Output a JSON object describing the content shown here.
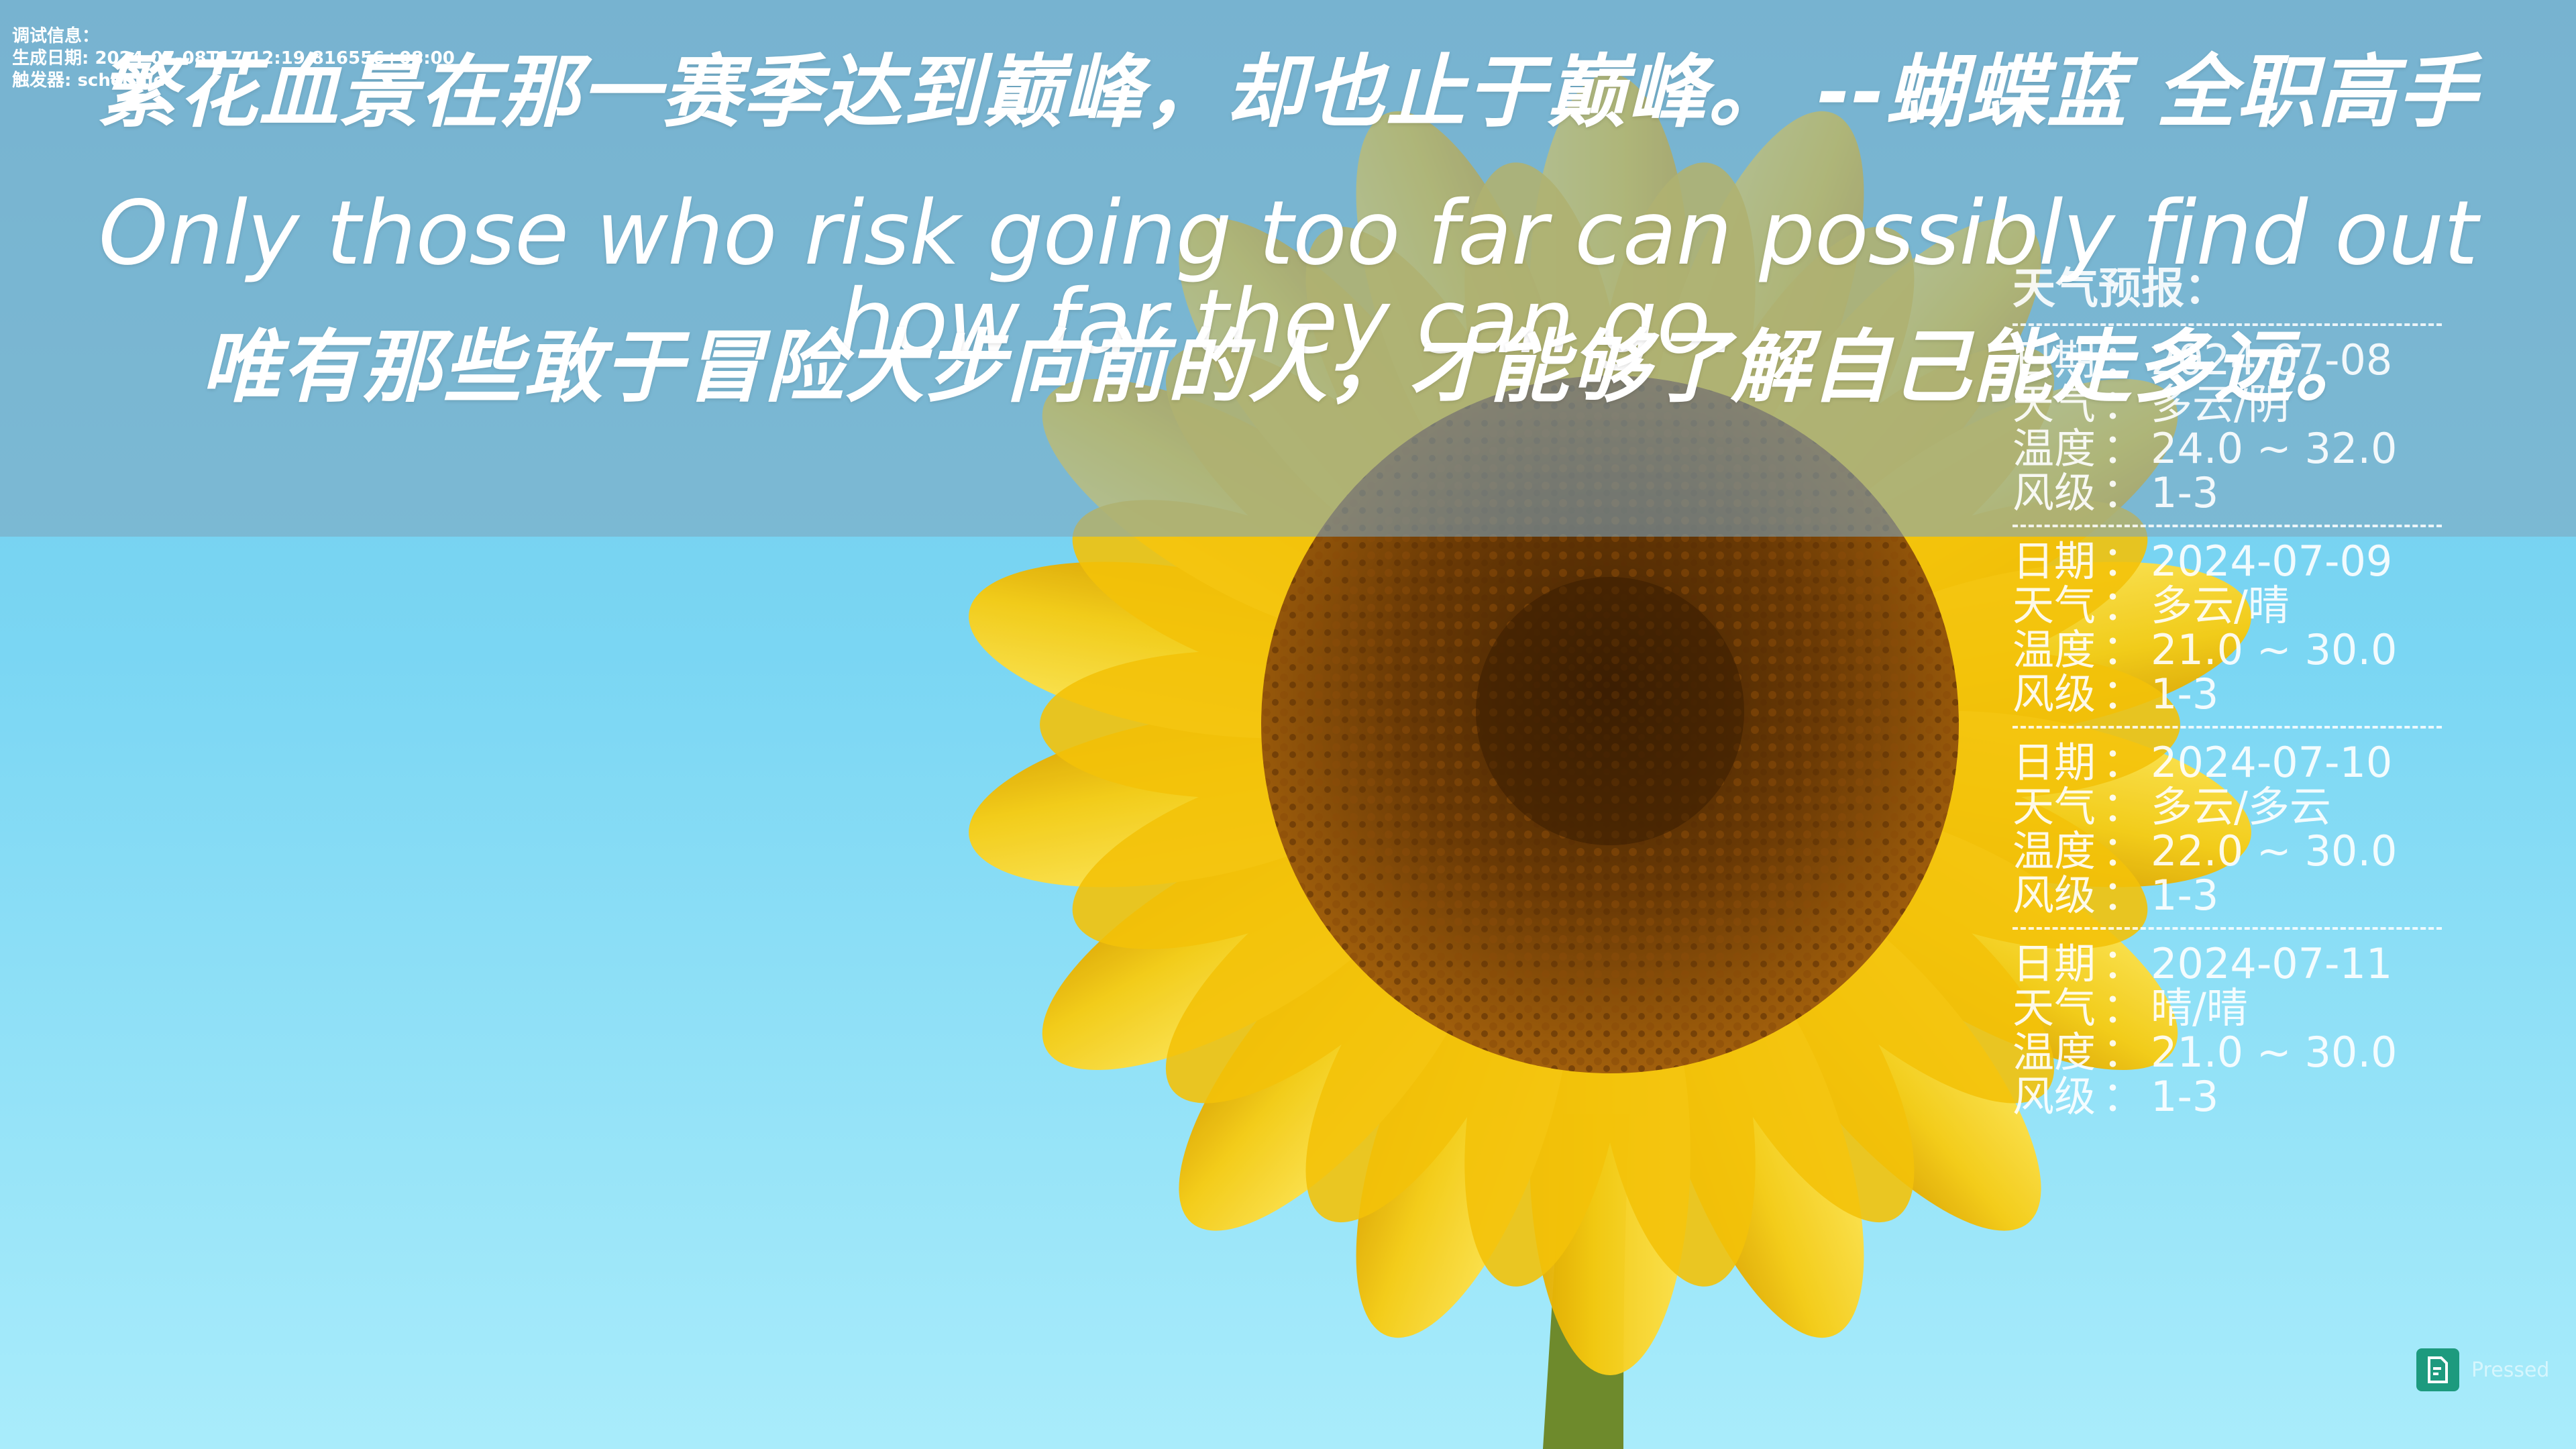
{
  "debug": {
    "line1": "调试信息：",
    "line2": "生成日期: 2024-07-08T17:12:19.816556+08:00",
    "line3": "触发器: schedule"
  },
  "quote": {
    "zh_line": "繁花血景在那一赛季达到巅峰，却也止于巅峰。 --蝴蝶蓝 全职高手",
    "en_line": "Only those who risk going too far can possibly find out how far they can go.",
    "zh_translation": "唯有那些敢于冒险大步向前的人，才能够了解自己能走多远。"
  },
  "weather": {
    "title": "天气预报：",
    "labels": {
      "date": "日期",
      "weather": "天气",
      "temp": "温度",
      "wind": "风级"
    },
    "colon": "：",
    "days": [
      {
        "date": "2024-07-08",
        "weather": "多云/阴",
        "temp": "24.0 ~ 32.0",
        "wind": "1-3"
      },
      {
        "date": "2024-07-09",
        "weather": "多云/晴",
        "temp": "21.0 ~ 30.0",
        "wind": "1-3"
      },
      {
        "date": "2024-07-10",
        "weather": "多云/多云",
        "temp": "22.0 ~ 30.0",
        "wind": "1-3"
      },
      {
        "date": "2024-07-11",
        "weather": "晴/晴",
        "temp": "21.0 ~ 30.0",
        "wind": "1-3"
      }
    ]
  },
  "watermark": {
    "text": "Pressed"
  },
  "colors": {
    "sky_top": "#6fc6ea",
    "sky_bottom": "#a9ecfb",
    "petal": "#f6cf12",
    "petal_dark": "#e7b400",
    "center": "#6b3a05",
    "stem": "#6e8a2c",
    "watermark_logo": "#1d9a7e"
  }
}
